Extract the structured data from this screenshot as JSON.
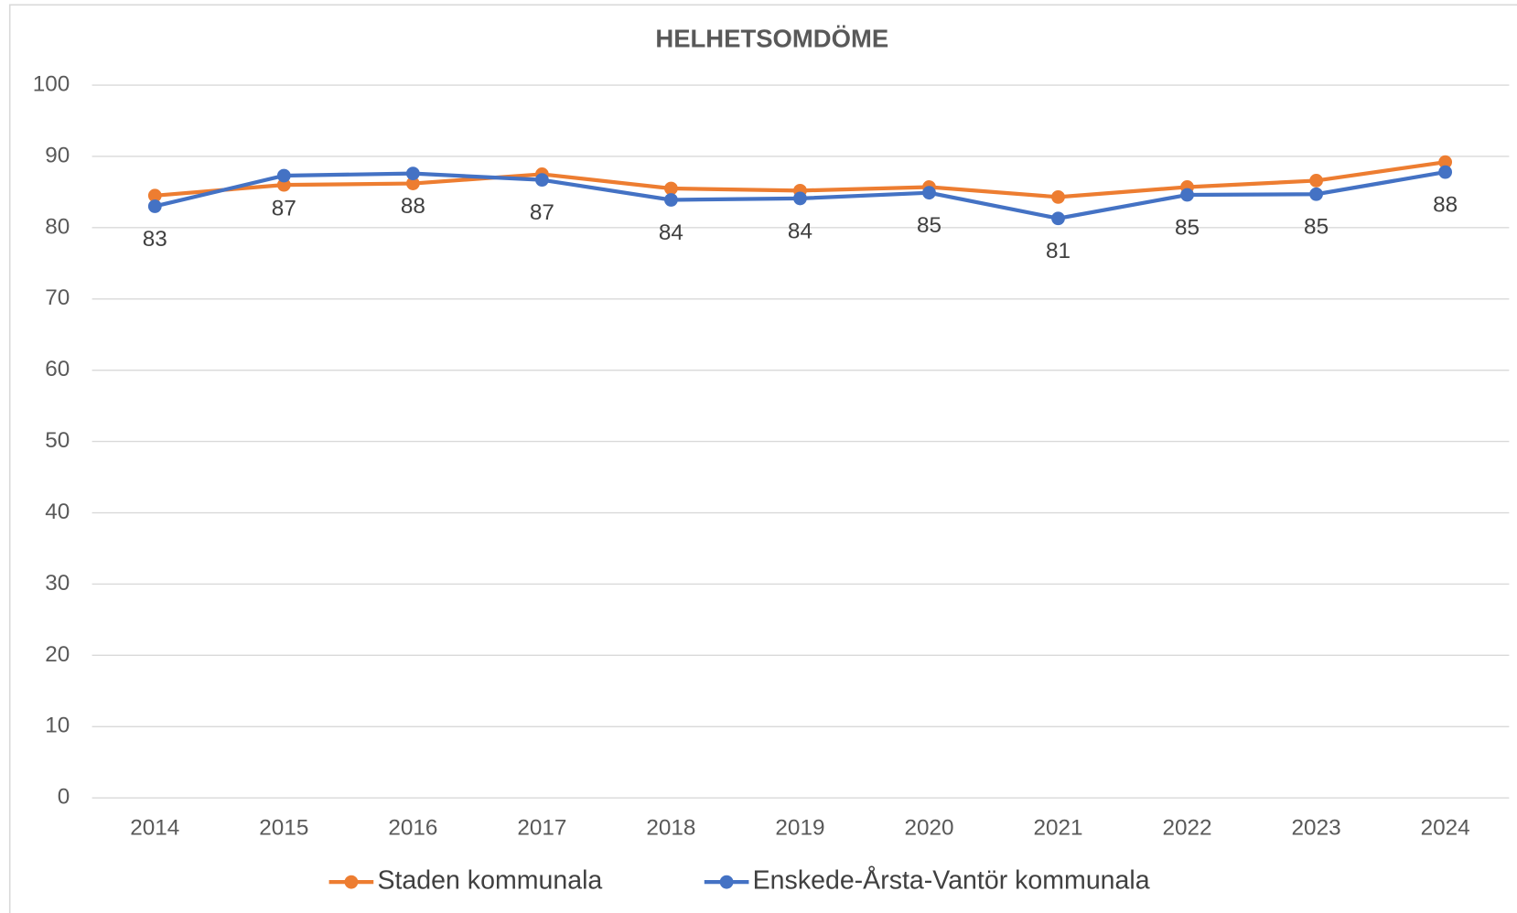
{
  "chart_data": {
    "type": "line",
    "title": "HELHETSOMDÖME",
    "categories": [
      "2014",
      "2015",
      "2016",
      "2017",
      "2018",
      "2019",
      "2020",
      "2021",
      "2022",
      "2023",
      "2024"
    ],
    "series": [
      {
        "name": "Staden kommunala",
        "color": "#ed7d31",
        "values": [
          84.5,
          86.0,
          86.2,
          87.5,
          85.5,
          85.2,
          85.7,
          84.3,
          85.7,
          86.6,
          89.2
        ]
      },
      {
        "name": "Enskede-Årsta-Vantör kommunala",
        "color": "#4472c4",
        "values": [
          83.0,
          87.3,
          87.6,
          86.7,
          83.9,
          84.1,
          84.9,
          81.3,
          84.6,
          84.7,
          87.8
        ],
        "value_labels": [
          "83",
          "87",
          "88",
          "87",
          "84",
          "84",
          "85",
          "81",
          "85",
          "85",
          "88"
        ]
      }
    ],
    "ylim": [
      0,
      100
    ],
    "yticks": [
      0,
      10,
      20,
      30,
      40,
      50,
      60,
      70,
      80,
      90,
      100
    ],
    "grid": true,
    "legend": "bottom"
  }
}
